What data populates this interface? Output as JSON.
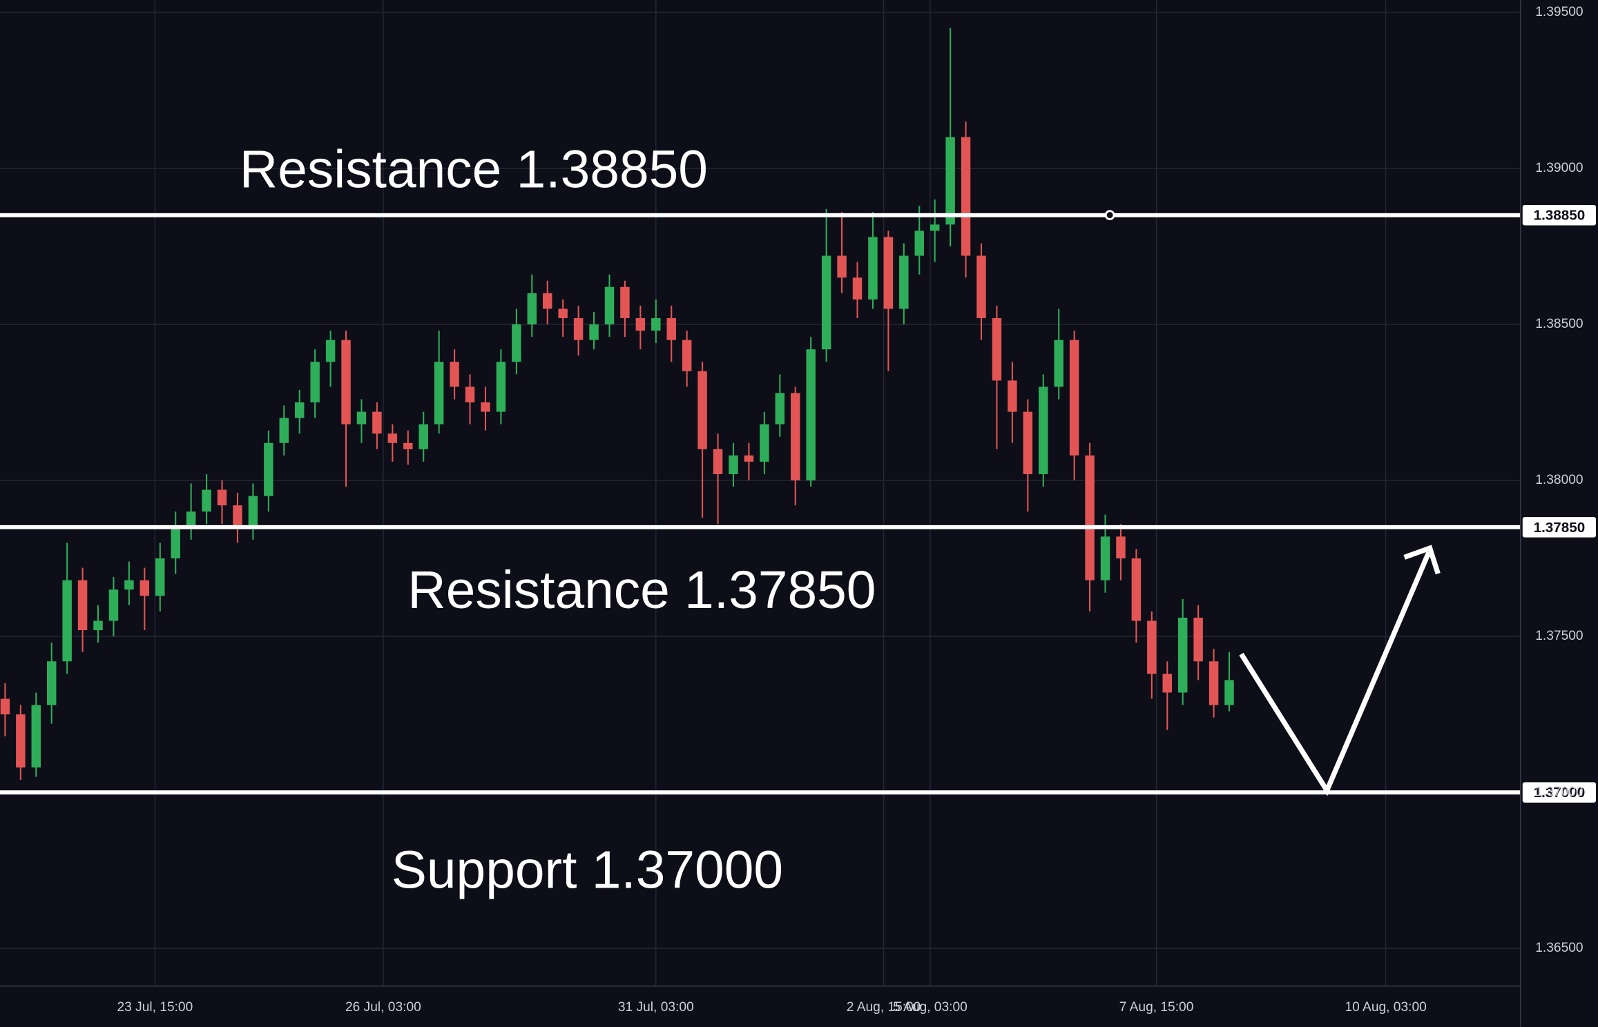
{
  "chart_data": {
    "type": "candlestick",
    "ylim": [
      1.365,
      1.395
    ],
    "yticks": [
      {
        "value": 1.365,
        "label": "1.36500"
      },
      {
        "value": 1.37,
        "label": "1.37000"
      },
      {
        "value": 1.375,
        "label": "1.37500"
      },
      {
        "value": 1.38,
        "label": "1.38000"
      },
      {
        "value": 1.385,
        "label": "1.38500"
      },
      {
        "value": 1.39,
        "label": "1.39000"
      },
      {
        "value": 1.395,
        "label": "1.39500"
      }
    ],
    "xlim": [
      -0.33,
      97.8
    ],
    "xticks": [
      {
        "value": 9.67,
        "label": "23 Jul, 15:00"
      },
      {
        "value": 24.4,
        "label": "26 Jul, 03:00"
      },
      {
        "value": 42.0,
        "label": "31 Jul, 03:00"
      },
      {
        "value": 56.7,
        "label": "2 Aug, 15:00"
      },
      {
        "value": 59.7,
        "label": "5 Aug, 03:00"
      },
      {
        "value": 74.3,
        "label": "7 Aug, 15:00"
      },
      {
        "value": 89.1,
        "label": "10 Aug, 03:00"
      }
    ],
    "grid": true,
    "up_color": "#2fae5a",
    "down_color": "#e35555",
    "open": [
      1.373,
      1.3725,
      1.3708,
      1.3728,
      1.3742,
      1.3768,
      1.3752,
      1.3755,
      1.3765,
      1.3768,
      1.3763,
      1.3775,
      1.3785,
      1.379,
      1.3797,
      1.3792,
      1.3785,
      1.3795,
      1.3812,
      1.382,
      1.3825,
      1.3838,
      1.3845,
      1.3818,
      1.3822,
      1.3815,
      1.3812,
      1.381,
      1.3818,
      1.3838,
      1.383,
      1.3825,
      1.3822,
      1.3838,
      1.385,
      1.386,
      1.3855,
      1.3852,
      1.3845,
      1.385,
      1.3862,
      1.3852,
      1.3848,
      1.3852,
      1.3845,
      1.3835,
      1.381,
      1.3802,
      1.3808,
      1.3806,
      1.3818,
      1.3828,
      1.38,
      1.3842,
      1.3872,
      1.3865,
      1.3858,
      1.3878,
      1.3855,
      1.3872,
      1.388,
      1.3882,
      1.391,
      1.3872,
      1.3852,
      1.3832,
      1.3822,
      1.3802,
      1.383,
      1.3845,
      1.3808,
      1.3768,
      1.3782,
      1.3775,
      1.3755,
      1.3738,
      1.3732,
      1.3756,
      1.3742,
      1.3728
    ],
    "high": [
      1.3735,
      1.3728,
      1.3732,
      1.3748,
      1.378,
      1.3772,
      1.376,
      1.3769,
      1.3774,
      1.3772,
      1.378,
      1.379,
      1.3799,
      1.3802,
      1.38,
      1.3796,
      1.3799,
      1.3816,
      1.3824,
      1.3829,
      1.3842,
      1.3848,
      1.3848,
      1.3826,
      1.3825,
      1.3818,
      1.3816,
      1.3822,
      1.3848,
      1.3842,
      1.3834,
      1.383,
      1.3842,
      1.3855,
      1.3866,
      1.3864,
      1.3858,
      1.3856,
      1.3854,
      1.3866,
      1.3864,
      1.3856,
      1.3858,
      1.3856,
      1.3848,
      1.3838,
      1.3815,
      1.3812,
      1.3812,
      1.3822,
      1.3834,
      1.383,
      1.3846,
      1.3887,
      1.3886,
      1.387,
      1.3886,
      1.388,
      1.3876,
      1.3888,
      1.389,
      1.3945,
      1.3915,
      1.3876,
      1.3856,
      1.3838,
      1.3826,
      1.3834,
      1.3855,
      1.3848,
      1.3812,
      1.3789,
      1.3786,
      1.3778,
      1.3758,
      1.3742,
      1.3762,
      1.376,
      1.3746,
      1.3745
    ],
    "low": [
      1.3718,
      1.3704,
      1.3705,
      1.3722,
      1.3738,
      1.3745,
      1.3748,
      1.375,
      1.376,
      1.3752,
      1.3758,
      1.377,
      1.3781,
      1.3786,
      1.3786,
      1.378,
      1.3781,
      1.379,
      1.3808,
      1.3815,
      1.382,
      1.383,
      1.3798,
      1.3812,
      1.381,
      1.3806,
      1.3805,
      1.3806,
      1.3815,
      1.3826,
      1.3818,
      1.3816,
      1.3818,
      1.3834,
      1.3846,
      1.385,
      1.3846,
      1.384,
      1.3842,
      1.3846,
      1.3846,
      1.3842,
      1.3844,
      1.3838,
      1.383,
      1.3788,
      1.3786,
      1.3798,
      1.38,
      1.3802,
      1.3814,
      1.3792,
      1.3798,
      1.3838,
      1.386,
      1.3852,
      1.3855,
      1.3835,
      1.385,
      1.3866,
      1.387,
      1.3875,
      1.3865,
      1.3845,
      1.381,
      1.3812,
      1.379,
      1.3798,
      1.3826,
      1.38,
      1.3758,
      1.3764,
      1.3768,
      1.3748,
      1.373,
      1.372,
      1.3728,
      1.3736,
      1.3724,
      1.3726
    ],
    "close": [
      1.3725,
      1.3708,
      1.3728,
      1.3742,
      1.3768,
      1.3752,
      1.3755,
      1.3765,
      1.3768,
      1.3763,
      1.3775,
      1.3785,
      1.379,
      1.3797,
      1.3792,
      1.3785,
      1.3795,
      1.3812,
      1.382,
      1.3825,
      1.3838,
      1.3845,
      1.3818,
      1.3822,
      1.3815,
      1.3812,
      1.381,
      1.3818,
      1.3838,
      1.383,
      1.3825,
      1.3822,
      1.3838,
      1.385,
      1.386,
      1.3855,
      1.3852,
      1.3845,
      1.385,
      1.3862,
      1.3852,
      1.3848,
      1.3852,
      1.3845,
      1.3835,
      1.381,
      1.3802,
      1.3808,
      1.3806,
      1.3818,
      1.3828,
      1.38,
      1.3842,
      1.3872,
      1.3865,
      1.3858,
      1.3878,
      1.3855,
      1.3872,
      1.388,
      1.3882,
      1.391,
      1.3872,
      1.3852,
      1.3832,
      1.3822,
      1.3802,
      1.383,
      1.3845,
      1.3808,
      1.3768,
      1.3782,
      1.3775,
      1.3755,
      1.3738,
      1.3732,
      1.3756,
      1.3742,
      1.3728,
      1.3736
    ],
    "levels": [
      {
        "value": 1.3885,
        "label": "1.38850"
      },
      {
        "value": 1.3785,
        "label": "1.37850"
      },
      {
        "value": 1.37,
        "label": "1.37000"
      }
    ],
    "annotations": [
      "Resistance 1.38850",
      "Resistance 1.37850",
      "Support 1.37000"
    ]
  }
}
